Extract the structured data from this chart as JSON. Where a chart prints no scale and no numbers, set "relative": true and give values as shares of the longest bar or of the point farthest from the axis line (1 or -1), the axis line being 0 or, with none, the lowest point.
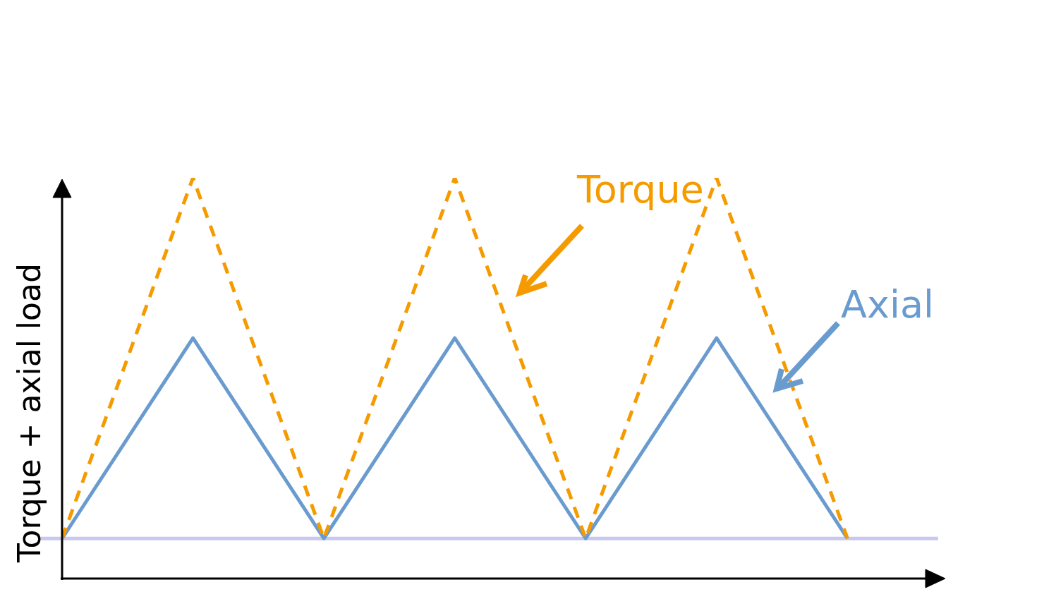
{
  "chart_data": {
    "type": "line",
    "relative": true,
    "ylabel": "Torque + axial load",
    "legend": false,
    "marker": "none",
    "categories": [
      null,
      null,
      null,
      null,
      null,
      null,
      null
    ],
    "series": [
      {
        "name": "Torque",
        "color": "#f59b00",
        "line_style": "dashed",
        "values": [
          0.1,
          1,
          0.1,
          1,
          0.1,
          1,
          0.1
        ]
      },
      {
        "name": "Axial",
        "color": "#6a9bcf",
        "line_style": "solid",
        "values": [
          0.1,
          0.6,
          0.1,
          0.6,
          0.1,
          0.6,
          0.1
        ]
      }
    ],
    "ref_lines": [
      {
        "axis": "y",
        "value": 0.1,
        "color": "#c8c8f0"
      }
    ]
  }
}
